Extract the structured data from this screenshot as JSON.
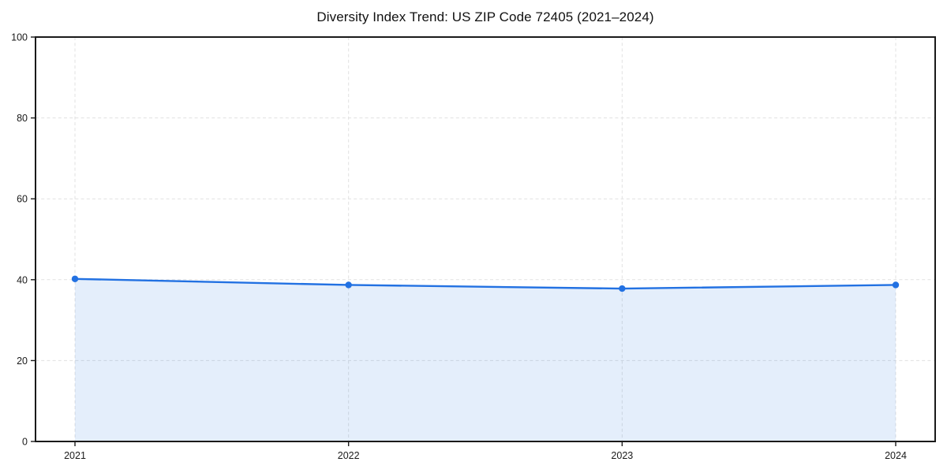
{
  "page": {
    "background": "#ffffff"
  },
  "chart_data": {
    "type": "area",
    "title": "Diversity Index Trend: US ZIP Code 72405 (2021–2024)",
    "categories": [
      "2021",
      "2022",
      "2023",
      "2024"
    ],
    "series": [
      {
        "name": "Diversity Index",
        "values": [
          40.2,
          38.7,
          37.8,
          38.7
        ]
      }
    ],
    "xlabel": "",
    "ylabel": "",
    "ylim": [
      0,
      100
    ],
    "yticks": [
      0,
      20,
      40,
      60,
      80,
      100
    ],
    "marker": "circle",
    "legend": {
      "visible": false
    },
    "grid": {
      "visible": true,
      "style": "dashed",
      "horizontal": true,
      "vertical": true,
      "color": "#e1e1e1"
    },
    "colors": {
      "line": "#2271e2",
      "marker": "#2271e2",
      "fill": "rgba(34, 113, 226, 0.12)",
      "axis": "#1a1a1a",
      "text": "#1a1a1a"
    }
  }
}
